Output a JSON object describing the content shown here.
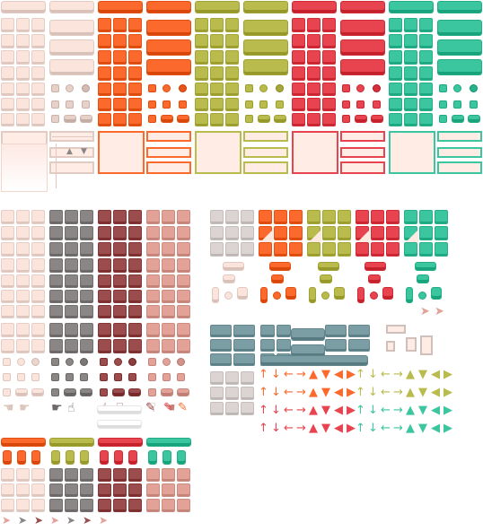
{
  "palette": {
    "white": "#fbe4dc",
    "orange": "#fb6a2c",
    "olive": "#b9bb4c",
    "red": "#e84450",
    "teal": "#3cc6a0",
    "grey": "#8a8686",
    "brown": "#9b4c4c",
    "salmon": "#e2a298",
    "slate": "#7a9ea4",
    "lightgrey": "#dcd4d2"
  },
  "atlas": {
    "top_palettes": [
      "white",
      "orange",
      "olive",
      "red",
      "teal"
    ],
    "left_palettes": [
      "white",
      "grey",
      "brown",
      "salmon"
    ],
    "right_palettes": [
      "lightgrey",
      "orange",
      "olive",
      "red",
      "teal"
    ],
    "arrow_glyphs": [
      "↑",
      "↓",
      "←",
      "→",
      "▲",
      "▼",
      "◀",
      "▶"
    ],
    "cursor_glyphs": [
      "☚",
      "☛",
      "☝",
      "☟"
    ]
  }
}
